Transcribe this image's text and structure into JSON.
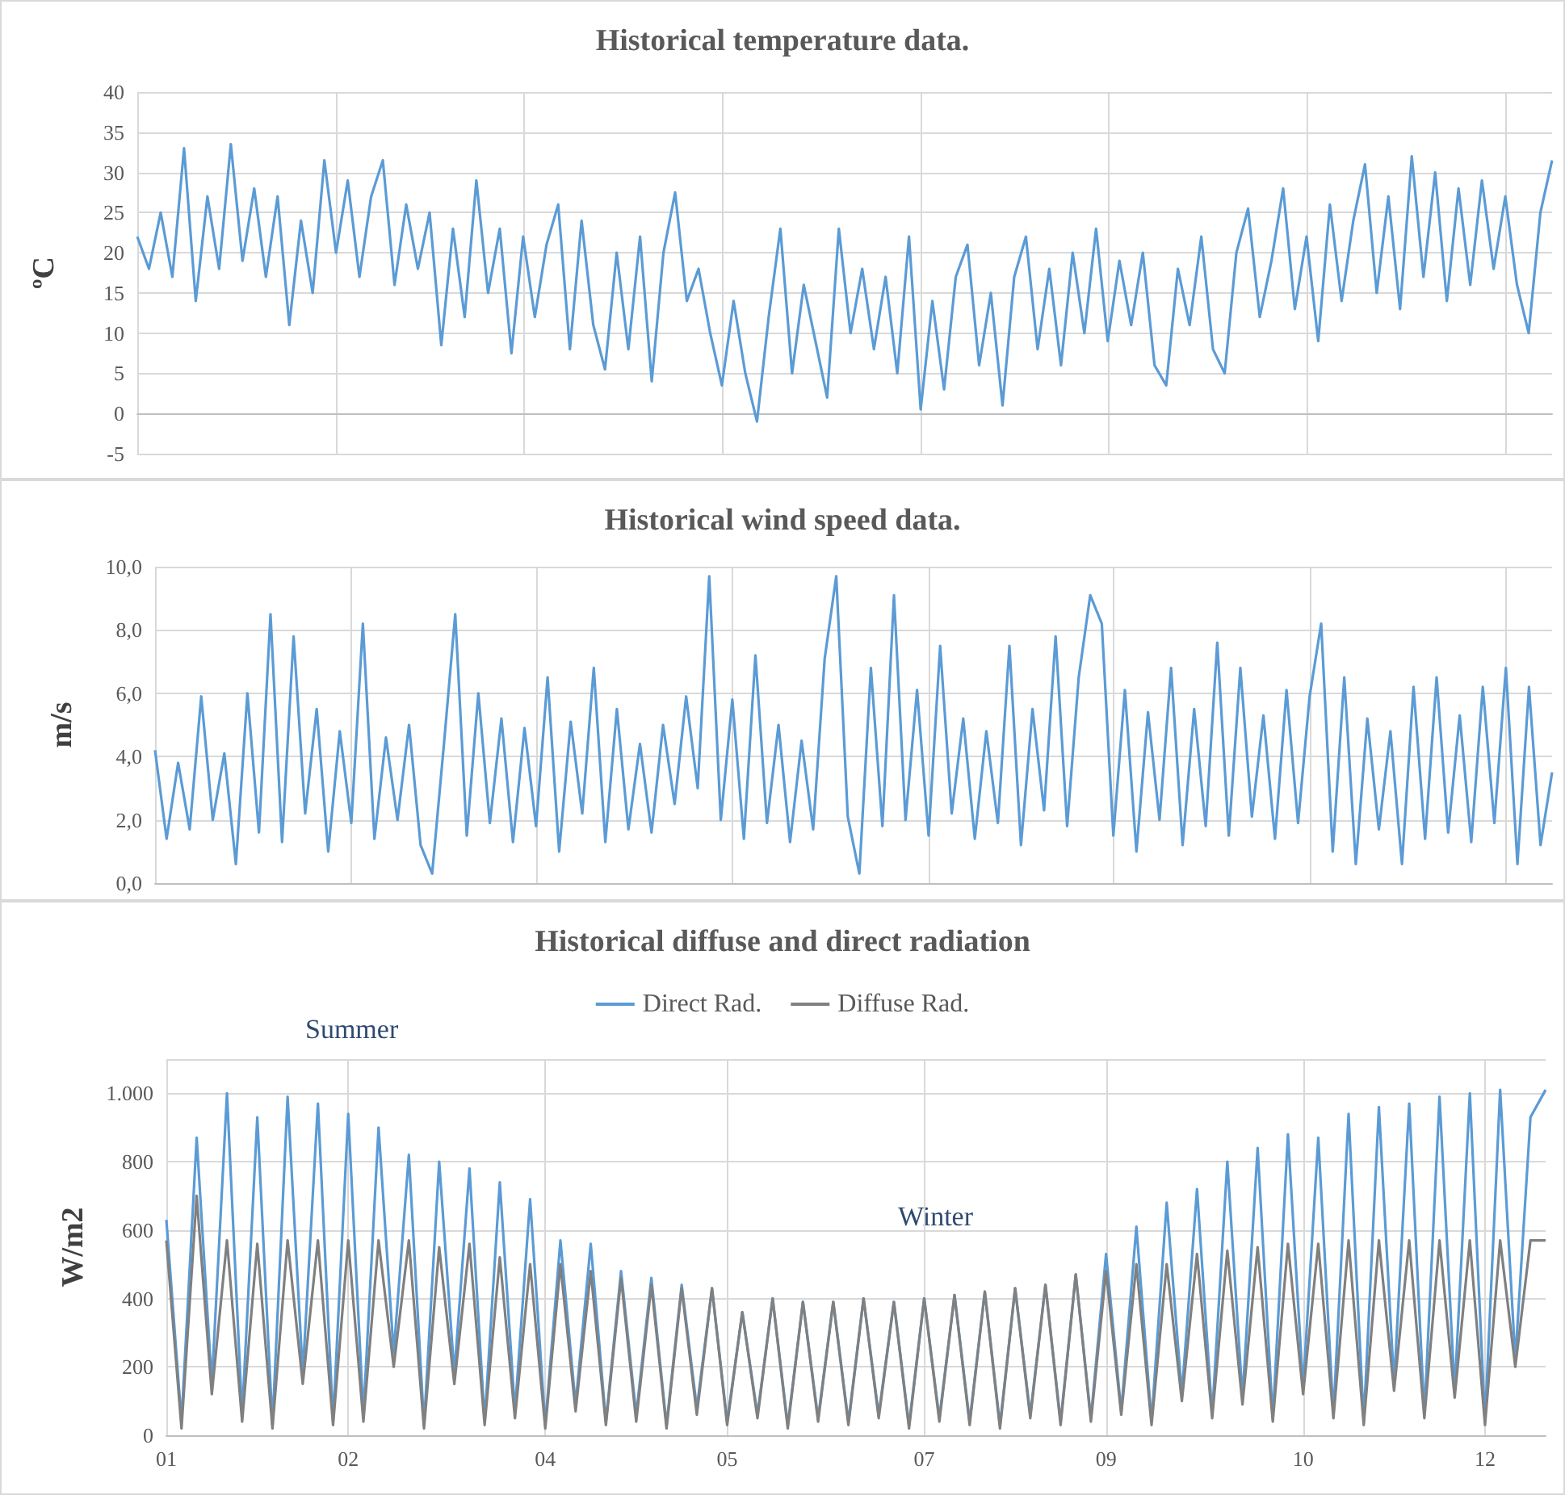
{
  "chart_data": [
    {
      "type": "line",
      "title": "Historical temperature data.",
      "ylabel": "ºC",
      "ylim": [
        -5,
        40
      ],
      "yticks": [
        -5,
        0,
        5,
        10,
        15,
        20,
        25,
        30,
        35,
        40
      ],
      "tick_labels": "y",
      "grid": true,
      "legend": false,
      "categories": [
        null,
        null,
        null,
        null,
        null,
        null,
        null,
        null,
        null,
        null,
        null,
        null,
        null,
        null,
        null,
        null,
        null,
        null,
        null,
        null,
        null,
        null,
        null,
        null,
        null,
        null,
        null,
        null,
        null,
        null,
        null,
        null,
        null,
        null,
        null,
        null,
        null,
        null,
        null,
        null,
        null,
        null,
        null,
        null,
        null,
        null,
        null,
        null,
        null,
        null,
        null,
        null,
        null,
        null,
        null,
        null,
        null,
        null,
        null,
        null,
        null,
        null,
        null,
        null,
        null,
        null,
        null,
        null,
        null,
        null,
        null,
        null,
        null,
        null,
        null,
        null,
        null,
        null,
        null,
        null,
        null,
        null,
        null,
        null,
        null,
        null,
        null,
        null,
        null,
        null,
        null,
        null,
        null,
        null,
        null,
        null,
        null,
        null,
        null,
        null,
        null,
        null,
        null,
        null,
        null,
        null,
        null,
        null,
        null,
        null,
        null,
        null,
        null,
        null,
        null,
        null,
        null,
        null,
        null,
        null,
        null,
        null
      ],
      "series": [
        {
          "color": "#5b9bd5",
          "values": [
            22,
            18,
            25,
            17,
            33,
            14,
            27,
            18,
            33.5,
            19,
            28,
            17,
            27,
            11,
            24,
            15,
            31.5,
            20,
            29,
            17,
            27,
            31.5,
            16,
            26,
            18,
            25,
            8.5,
            23,
            12,
            29,
            15,
            23,
            7.5,
            22,
            12,
            21,
            26,
            8,
            24,
            11,
            5.5,
            20,
            8,
            22,
            4,
            20,
            27.5,
            14,
            18,
            10,
            3.5,
            14,
            5,
            -1,
            12,
            23,
            5,
            16,
            9,
            2,
            23,
            10,
            18,
            8,
            17,
            5,
            22,
            0.5,
            14,
            3,
            17,
            21,
            6,
            15,
            1,
            17,
            22,
            8,
            18,
            6,
            20,
            10,
            23,
            9,
            19,
            11,
            20,
            6,
            3.5,
            18,
            11,
            22,
            8,
            5,
            20,
            25.5,
            12,
            19,
            28,
            13,
            22,
            9,
            26,
            14,
            24,
            31,
            15,
            27,
            13,
            32,
            17,
            30,
            14,
            28,
            16,
            29,
            18,
            27,
            16,
            10,
            25,
            31.5
          ]
        }
      ]
    },
    {
      "type": "line",
      "title": "Historical wind speed data.",
      "ylabel": "m/s",
      "ylim": [
        0,
        10
      ],
      "yticks": [
        {
          "value": 0,
          "label": "0,0"
        },
        {
          "value": 2,
          "label": "2,0"
        },
        {
          "value": 4,
          "label": "4,0"
        },
        {
          "value": 6,
          "label": "6,0"
        },
        {
          "value": 8,
          "label": "8,0"
        },
        {
          "value": 10,
          "label": "10,0"
        }
      ],
      "tick_labels": "y",
      "grid": true,
      "legend": false,
      "categories": [
        null,
        null,
        null,
        null,
        null,
        null,
        null,
        null,
        null,
        null,
        null,
        null,
        null,
        null,
        null,
        null,
        null,
        null,
        null,
        null,
        null,
        null,
        null,
        null,
        null,
        null,
        null,
        null,
        null,
        null,
        null,
        null,
        null,
        null,
        null,
        null,
        null,
        null,
        null,
        null,
        null,
        null,
        null,
        null,
        null,
        null,
        null,
        null,
        null,
        null,
        null,
        null,
        null,
        null,
        null,
        null,
        null,
        null,
        null,
        null,
        null,
        null,
        null,
        null,
        null,
        null,
        null,
        null,
        null,
        null,
        null,
        null,
        null,
        null,
        null,
        null,
        null,
        null,
        null,
        null,
        null,
        null,
        null,
        null,
        null,
        null,
        null,
        null,
        null,
        null,
        null,
        null,
        null,
        null,
        null,
        null,
        null,
        null,
        null,
        null,
        null,
        null,
        null,
        null,
        null,
        null,
        null,
        null,
        null,
        null,
        null,
        null,
        null,
        null,
        null,
        null,
        null,
        null,
        null,
        null,
        null,
        null
      ],
      "series": [
        {
          "color": "#5b9bd5",
          "values": [
            4.2,
            1.4,
            3.8,
            1.7,
            5.9,
            2.0,
            4.1,
            0.6,
            6.0,
            1.6,
            8.5,
            1.3,
            7.8,
            2.2,
            5.5,
            1.0,
            4.8,
            1.9,
            8.2,
            1.4,
            4.6,
            2.0,
            5.0,
            1.2,
            0.3,
            4.3,
            8.5,
            1.5,
            6.0,
            1.9,
            5.2,
            1.3,
            4.9,
            1.8,
            6.5,
            1.0,
            5.1,
            2.2,
            6.8,
            1.3,
            5.5,
            1.7,
            4.4,
            1.6,
            5.0,
            2.5,
            5.9,
            3.0,
            9.7,
            2.0,
            5.8,
            1.4,
            7.2,
            1.9,
            5.0,
            1.3,
            4.5,
            1.7,
            7.1,
            9.7,
            2.1,
            0.3,
            6.8,
            1.8,
            9.1,
            2.0,
            6.1,
            1.5,
            7.5,
            2.2,
            5.2,
            1.4,
            4.8,
            1.9,
            7.5,
            1.2,
            5.5,
            2.3,
            7.8,
            1.8,
            6.5,
            9.1,
            8.2,
            1.5,
            6.1,
            1.0,
            5.4,
            2.0,
            6.8,
            1.2,
            5.5,
            1.8,
            7.6,
            1.5,
            6.8,
            2.1,
            5.3,
            1.4,
            6.1,
            1.9,
            5.9,
            8.2,
            1.0,
            6.5,
            0.6,
            5.2,
            1.7,
            4.8,
            0.6,
            6.2,
            1.4,
            6.5,
            1.6,
            5.3,
            1.3,
            6.2,
            1.9,
            6.8,
            0.6,
            6.2,
            1.2,
            3.5
          ]
        }
      ]
    },
    {
      "type": "line",
      "title": "Historical diffuse and direct radiation",
      "ylabel": "W/m2",
      "annotations": [
        "Summer",
        "Winter"
      ],
      "ylim": [
        0,
        1100
      ],
      "yticks": [
        0,
        200,
        400,
        600,
        800,
        {
          "value": 1000,
          "label": "1.000"
        }
      ],
      "grid": true,
      "legend": "top",
      "categories": [
        "01",
        null,
        null,
        null,
        null,
        null,
        null,
        null,
        null,
        null,
        null,
        null,
        "02",
        null,
        null,
        null,
        null,
        null,
        null,
        null,
        null,
        null,
        null,
        null,
        null,
        "04",
        null,
        null,
        null,
        null,
        null,
        null,
        null,
        null,
        null,
        null,
        null,
        "05",
        null,
        null,
        null,
        null,
        null,
        null,
        null,
        null,
        null,
        null,
        null,
        null,
        "07",
        null,
        null,
        null,
        null,
        null,
        null,
        null,
        null,
        null,
        null,
        null,
        "09",
        null,
        null,
        null,
        null,
        null,
        null,
        null,
        null,
        null,
        null,
        null,
        null,
        "10",
        null,
        null,
        null,
        null,
        null,
        null,
        null,
        null,
        null,
        null,
        null,
        "12",
        null,
        null,
        null,
        null
      ],
      "series": [
        {
          "name": "Direct Rad.",
          "color": "#5b9bd5",
          "values": [
            630,
            40,
            870,
            150,
            1000,
            60,
            930,
            30,
            990,
            180,
            970,
            40,
            940,
            60,
            900,
            240,
            820,
            30,
            800,
            180,
            780,
            40,
            740,
            70,
            690,
            30,
            570,
            90,
            560,
            40,
            480,
            60,
            460,
            30,
            440,
            80,
            430,
            40,
            360,
            60,
            400,
            30,
            390,
            50,
            390,
            40,
            400,
            60,
            390,
            30,
            400,
            50,
            410,
            40,
            420,
            30,
            430,
            60,
            440,
            40,
            470,
            50,
            530,
            70,
            610,
            40,
            680,
            120,
            720,
            60,
            800,
            110,
            840,
            50,
            880,
            140,
            870,
            60,
            940,
            40,
            960,
            150,
            970,
            60,
            990,
            130,
            1000,
            40,
            1010,
            220,
            930,
            1010
          ]
        },
        {
          "name": "Diffuse Rad.",
          "color": "#808080",
          "values": [
            570,
            20,
            700,
            120,
            570,
            40,
            560,
            20,
            570,
            150,
            570,
            30,
            570,
            40,
            570,
            200,
            570,
            20,
            550,
            150,
            560,
            30,
            520,
            50,
            500,
            20,
            500,
            70,
            480,
            30,
            460,
            40,
            440,
            20,
            430,
            60,
            430,
            30,
            360,
            50,
            400,
            20,
            390,
            40,
            390,
            30,
            400,
            50,
            390,
            20,
            400,
            40,
            410,
            30,
            420,
            20,
            430,
            50,
            440,
            30,
            470,
            40,
            480,
            60,
            500,
            30,
            500,
            100,
            530,
            50,
            540,
            90,
            550,
            40,
            560,
            120,
            560,
            50,
            570,
            30,
            570,
            130,
            570,
            50,
            570,
            110,
            570,
            30,
            570,
            200,
            570,
            570
          ]
        }
      ]
    }
  ]
}
